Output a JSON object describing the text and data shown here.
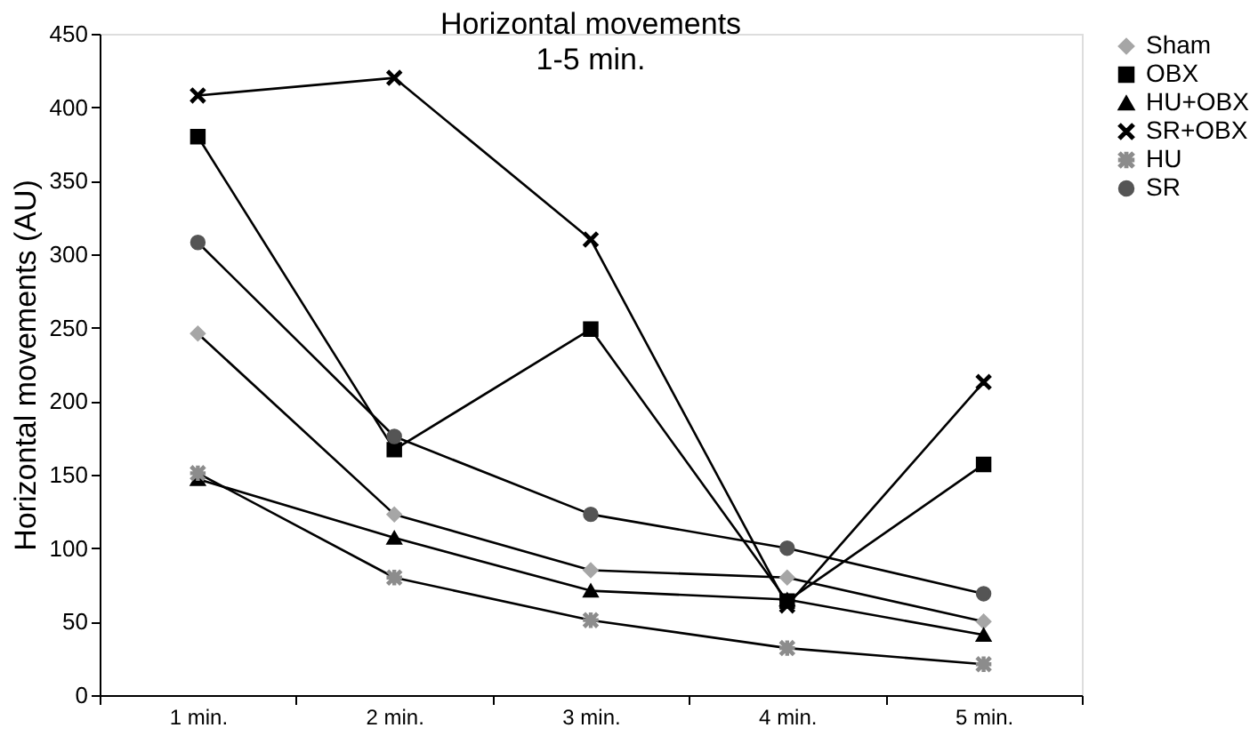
{
  "chart_data": {
    "type": "line",
    "title": "Horizontal movements",
    "subtitle": "1-5 min.",
    "ylabel": "Horizontal movements (AU)",
    "categories": [
      "1 min.",
      "2 min.",
      "3 min.",
      "4 min.",
      "5 min."
    ],
    "ylim": [
      0,
      450
    ],
    "yticks": [
      0,
      50,
      100,
      150,
      200,
      250,
      300,
      350,
      400,
      450
    ],
    "grid": false,
    "legend": "top right",
    "series": [
      {
        "name": "Sham",
        "color": "#a6a6a6",
        "marker": "diamond",
        "values": [
          246,
          123,
          85,
          80,
          50
        ]
      },
      {
        "name": "OBX",
        "color": "#000000",
        "marker": "square",
        "values": [
          380,
          167,
          249,
          64,
          157
        ]
      },
      {
        "name": "HU+OBX",
        "color": "#000000",
        "marker": "triangle",
        "values": [
          147,
          107,
          71,
          65,
          41
        ]
      },
      {
        "name": "SR+OBX",
        "color": "#000000",
        "marker": "cross",
        "values": [
          408,
          420,
          310,
          61,
          213
        ]
      },
      {
        "name": "HU",
        "color": "#8c8c8c",
        "marker": "star",
        "values": [
          151,
          80,
          51,
          32,
          21
        ]
      },
      {
        "name": "SR",
        "color": "#555555",
        "marker": "circle",
        "values": [
          308,
          176,
          123,
          100,
          69
        ]
      }
    ]
  }
}
